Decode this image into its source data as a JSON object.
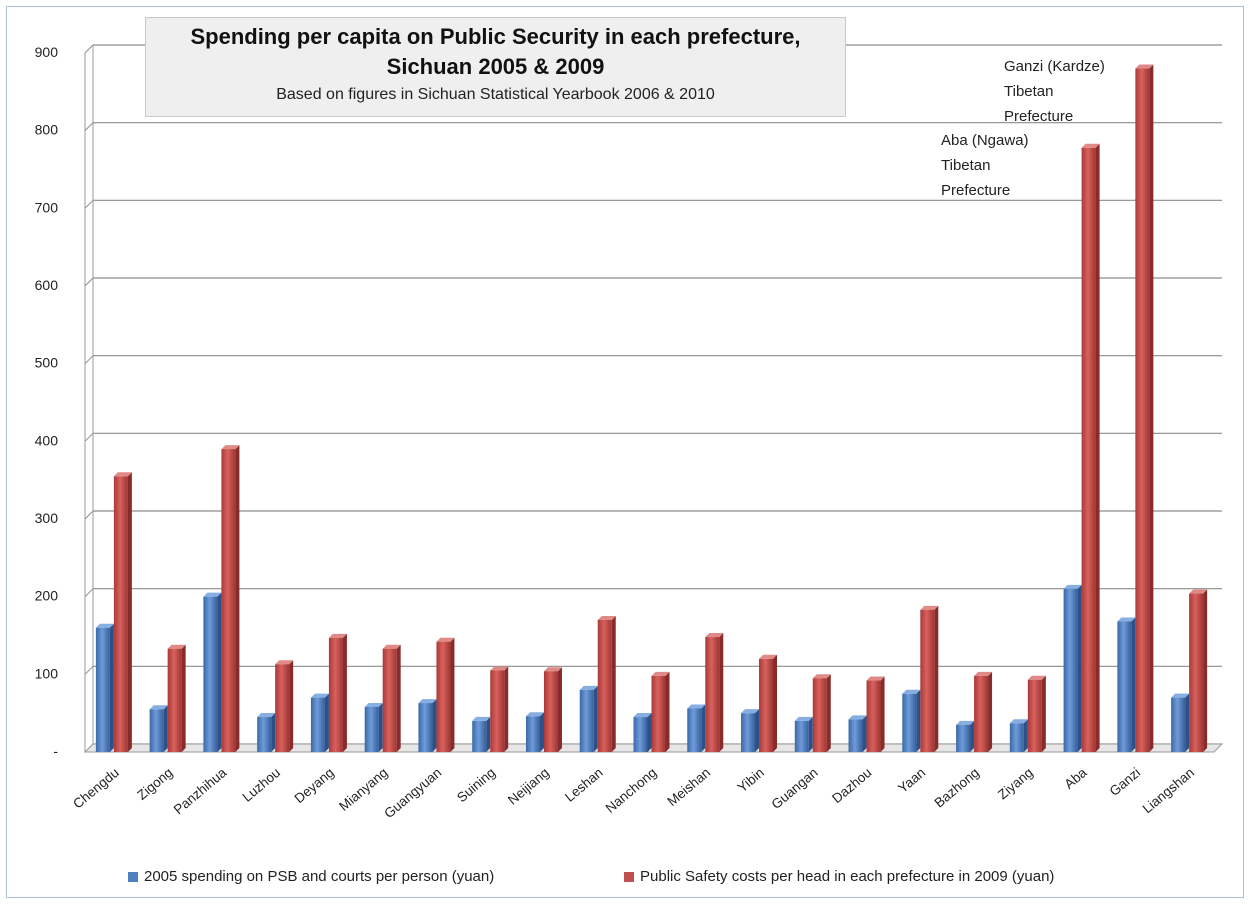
{
  "chart_data": {
    "type": "bar",
    "title_line1": "Spending per capita on Public Security in each prefecture,",
    "title_line2": "Sichuan 2005 & 2009",
    "subtitle": "Based on figures in Sichuan Statistical Yearbook  2006 & 2010",
    "categories": [
      "Chengdu",
      "Zigong",
      "Panzhihua",
      "Luzhou",
      "Deyang",
      "Mianyang",
      "Guangyuan",
      "Suining",
      "Neijiang",
      "Leshan",
      "Nanchong",
      "Meishan",
      "Yibin",
      "Guangan",
      "Dazhou",
      "Yaan",
      "Bazhong",
      "Ziyang",
      "Aba",
      "Ganzi",
      "Liangshan"
    ],
    "series": [
      {
        "name": "2005 spending on PSB and courts per person (yuan)",
        "color": "#4f81bd",
        "values": [
          160,
          55,
          200,
          45,
          70,
          58,
          63,
          40,
          46,
          80,
          45,
          56,
          50,
          40,
          42,
          75,
          35,
          37,
          210,
          168,
          70
        ]
      },
      {
        "name": "Public Safety costs per head in each prefecture in 2009 (yuan)",
        "color": "#c0504d",
        "values": [
          355,
          133,
          390,
          113,
          147,
          133,
          142,
          105,
          104,
          170,
          98,
          148,
          120,
          95,
          92,
          183,
          98,
          93,
          778,
          880,
          204
        ]
      }
    ],
    "ylim": [
      0,
      900
    ],
    "y_ticks": [
      "-",
      "100",
      "200",
      "300",
      "400",
      "500",
      "600",
      "700",
      "800",
      "900"
    ],
    "grid": true,
    "legend_position": "bottom",
    "annotations": {
      "aba": [
        "Aba (Ngawa)",
        "Tibetan",
        "Prefecture"
      ],
      "ganzi": [
        "Ganzi (Kardze)",
        "Tibetan",
        "Prefecture"
      ]
    }
  }
}
